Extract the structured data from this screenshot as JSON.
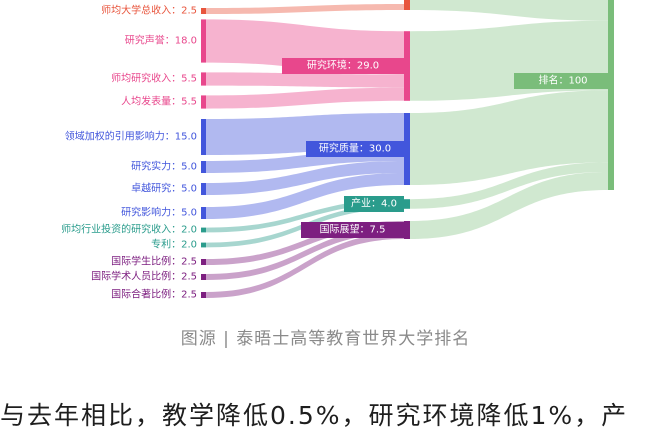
{
  "chart_data": {
    "type": "sankey",
    "colors": {
      "teaching": "#e8553d",
      "research_environment": "#e8478c",
      "research_quality": "#4256dc",
      "industry": "#2a9c8c",
      "international_outlook": "#7d1f80",
      "rank": "#7abd7a"
    },
    "nodes": [
      {
        "id": "income_per_staff",
        "label": "师均大学总收入：2.5",
        "value": 2.5,
        "group": "teaching",
        "column": 0
      },
      {
        "id": "reputation",
        "label": "研究声誉：18.0",
        "value": 18,
        "group": "research_environment",
        "column": 0
      },
      {
        "id": "research_income",
        "label": "师均研究收入：5.5",
        "value": 5.5,
        "group": "research_environment",
        "column": 0
      },
      {
        "id": "productivity",
        "label": "人均发表量：5.5",
        "value": 5.5,
        "group": "research_environment",
        "column": 0
      },
      {
        "id": "fwci",
        "label": "领域加权的引用影响力：15.0",
        "value": 15,
        "group": "research_quality",
        "column": 0
      },
      {
        "id": "research_strength",
        "label": "研究实力：5.0",
        "value": 5,
        "group": "research_quality",
        "column": 0
      },
      {
        "id": "research_excellence",
        "label": "卓越研究：5.0",
        "value": 5,
        "group": "research_quality",
        "column": 0
      },
      {
        "id": "research_influence",
        "label": "研究影响力：5.0",
        "value": 5,
        "group": "research_quality",
        "column": 0
      },
      {
        "id": "industry_income",
        "label": "师均行业投资的研究收入：2.0",
        "value": 2,
        "group": "industry",
        "column": 0
      },
      {
        "id": "patents",
        "label": "专利：2.0",
        "value": 2,
        "group": "industry",
        "column": 0
      },
      {
        "id": "intl_students",
        "label": "国际学生比例：2.5",
        "value": 2.5,
        "group": "international_outlook",
        "column": 0
      },
      {
        "id": "intl_staff",
        "label": "国际学术人员比例：2.5",
        "value": 2.5,
        "group": "international_outlook",
        "column": 0
      },
      {
        "id": "intl_coauthor",
        "label": "国际合著比例：2.5",
        "value": 2.5,
        "group": "international_outlook",
        "column": 0
      },
      {
        "id": "teaching",
        "group": "teaching",
        "column": 1
      },
      {
        "id": "research_environment",
        "label": "研究环境：29.0",
        "value": 29,
        "group": "research_environment",
        "column": 1
      },
      {
        "id": "research_quality",
        "label": "研究质量：30.0",
        "value": 30,
        "group": "research_quality",
        "column": 1
      },
      {
        "id": "industry",
        "label": "产业：4.0",
        "value": 4,
        "group": "industry",
        "column": 1
      },
      {
        "id": "international_outlook",
        "label": "国际展望：7.5",
        "value": 7.5,
        "group": "international_outlook",
        "column": 1
      },
      {
        "id": "rank",
        "label": "排名：100",
        "value": 100,
        "group": "rank",
        "column": 2
      }
    ],
    "links": [
      {
        "source": "income_per_staff",
        "target": "teaching",
        "value": 2.5
      },
      {
        "source": "reputation",
        "target": "research_environment",
        "value": 18
      },
      {
        "source": "research_income",
        "target": "research_environment",
        "value": 5.5
      },
      {
        "source": "productivity",
        "target": "research_environment",
        "value": 5.5
      },
      {
        "source": "fwci",
        "target": "research_quality",
        "value": 15
      },
      {
        "source": "research_strength",
        "target": "research_quality",
        "value": 5
      },
      {
        "source": "research_excellence",
        "target": "research_quality",
        "value": 5
      },
      {
        "source": "research_influence",
        "target": "research_quality",
        "value": 5
      },
      {
        "source": "industry_income",
        "target": "industry",
        "value": 2
      },
      {
        "source": "patents",
        "target": "industry",
        "value": 2
      },
      {
        "source": "intl_students",
        "target": "international_outlook",
        "value": 2.5
      },
      {
        "source": "intl_staff",
        "target": "international_outlook",
        "value": 2.5
      },
      {
        "source": "intl_coauthor",
        "target": "international_outlook",
        "value": 2.5
      },
      {
        "source": "teaching",
        "target": "rank"
      },
      {
        "source": "research_environment",
        "target": "rank",
        "value": 29
      },
      {
        "source": "research_quality",
        "target": "rank",
        "value": 30
      },
      {
        "source": "industry",
        "target": "rank",
        "value": 4
      },
      {
        "source": "international_outlook",
        "target": "rank",
        "value": 7.5
      }
    ]
  },
  "caption": "图源 | 泰晤士高等教育世界大学排名",
  "paragraph": "与去年相比，教学降低0.5%，研究环境降低1%，产"
}
